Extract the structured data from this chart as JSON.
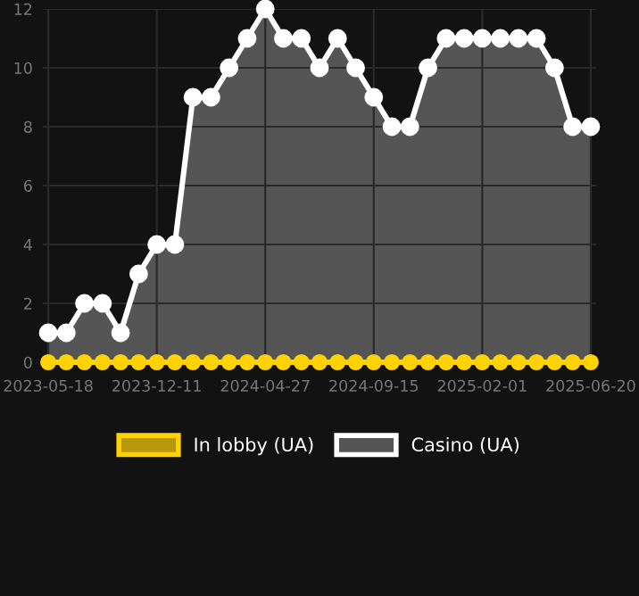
{
  "chart_data": {
    "type": "line",
    "categories": [
      "2023-05-18",
      null,
      null,
      null,
      null,
      null,
      "2023-12-11",
      null,
      null,
      null,
      null,
      null,
      "2024-04-27",
      null,
      null,
      null,
      null,
      null,
      "2024-09-15",
      null,
      null,
      null,
      null,
      null,
      "2025-02-01",
      null,
      null,
      null,
      null,
      null,
      "2025-06-20"
    ],
    "series": [
      {
        "name": "In lobby (UA)",
        "color": "#ffd200",
        "values": [
          0,
          0,
          0,
          0,
          0,
          0,
          0,
          0,
          0,
          0,
          0,
          0,
          0,
          0,
          0,
          0,
          0,
          0,
          0,
          0,
          0,
          0,
          0,
          0,
          0,
          0,
          0,
          0,
          0,
          0,
          0
        ]
      },
      {
        "name": "Casino (UA)",
        "type": "area",
        "color": "#ffffff",
        "values": [
          1,
          1,
          2,
          2,
          1,
          3,
          4,
          4,
          9,
          9,
          10,
          11,
          12,
          11,
          11,
          10,
          11,
          10,
          9,
          8,
          8,
          10,
          11,
          11,
          11,
          11,
          11,
          11,
          10,
          8,
          8
        ]
      }
    ],
    "ylim": [
      0,
      12
    ],
    "yticks": [
      0,
      2,
      4,
      6,
      8,
      10,
      12
    ],
    "grid": true,
    "legend": "bottom",
    "marker": "circle",
    "line_style": "solid"
  }
}
